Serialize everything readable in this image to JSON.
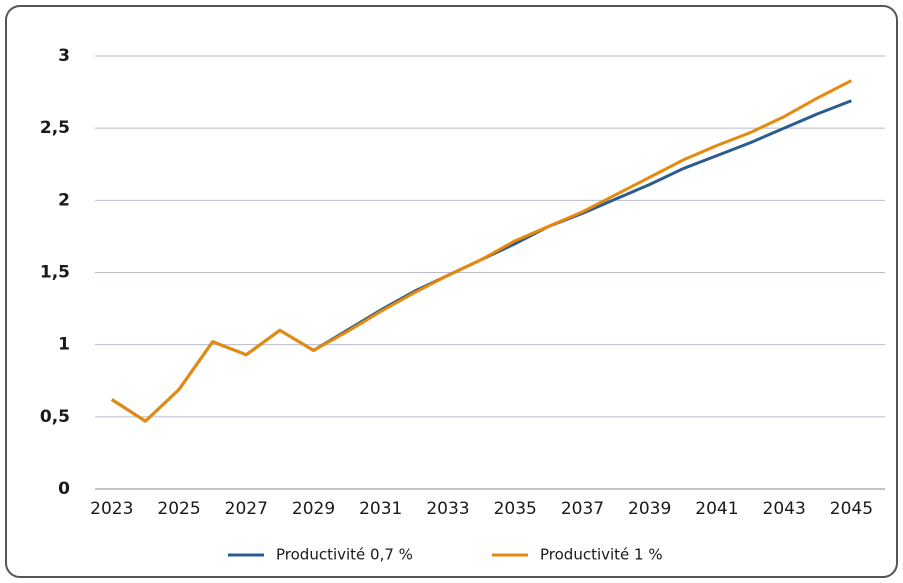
{
  "chart_data": {
    "type": "line",
    "x": [
      2023,
      2024,
      2025,
      2026,
      2027,
      2028,
      2029,
      2030,
      2031,
      2032,
      2033,
      2034,
      2035,
      2036,
      2037,
      2038,
      2039,
      2040,
      2041,
      2042,
      2043,
      2044,
      2045
    ],
    "series": [
      {
        "name": "Productivité 0,7 %",
        "color": "#2b5c8f",
        "values": [
          0.62,
          0.47,
          0.69,
          1.02,
          0.93,
          1.1,
          0.96,
          1.1,
          1.24,
          1.37,
          1.48,
          1.59,
          1.7,
          1.82,
          1.91,
          2.01,
          2.11,
          2.22,
          2.31,
          2.4,
          2.5,
          2.6,
          2.69
        ]
      },
      {
        "name": "Productivité 1 %",
        "color": "#e8890c",
        "values": [
          0.62,
          0.47,
          0.69,
          1.02,
          0.93,
          1.1,
          0.96,
          1.09,
          1.23,
          1.36,
          1.48,
          1.59,
          1.72,
          1.82,
          1.92,
          2.04,
          2.16,
          2.28,
          2.38,
          2.47,
          2.58,
          2.71,
          2.83
        ]
      }
    ],
    "xlim": [
      2022.5,
      2046
    ],
    "xticks": [
      2023,
      2025,
      2027,
      2029,
      2031,
      2033,
      2035,
      2037,
      2039,
      2041,
      2043,
      2045
    ],
    "ylim": [
      0,
      3
    ],
    "yticks": [
      0,
      {
        "value": 0.5,
        "label": "0,5"
      },
      1,
      {
        "value": 1.5,
        "label": "1,5"
      },
      2,
      {
        "value": 2.5,
        "label": "2,5"
      },
      3
    ],
    "grid": true,
    "legend": "bottom"
  }
}
